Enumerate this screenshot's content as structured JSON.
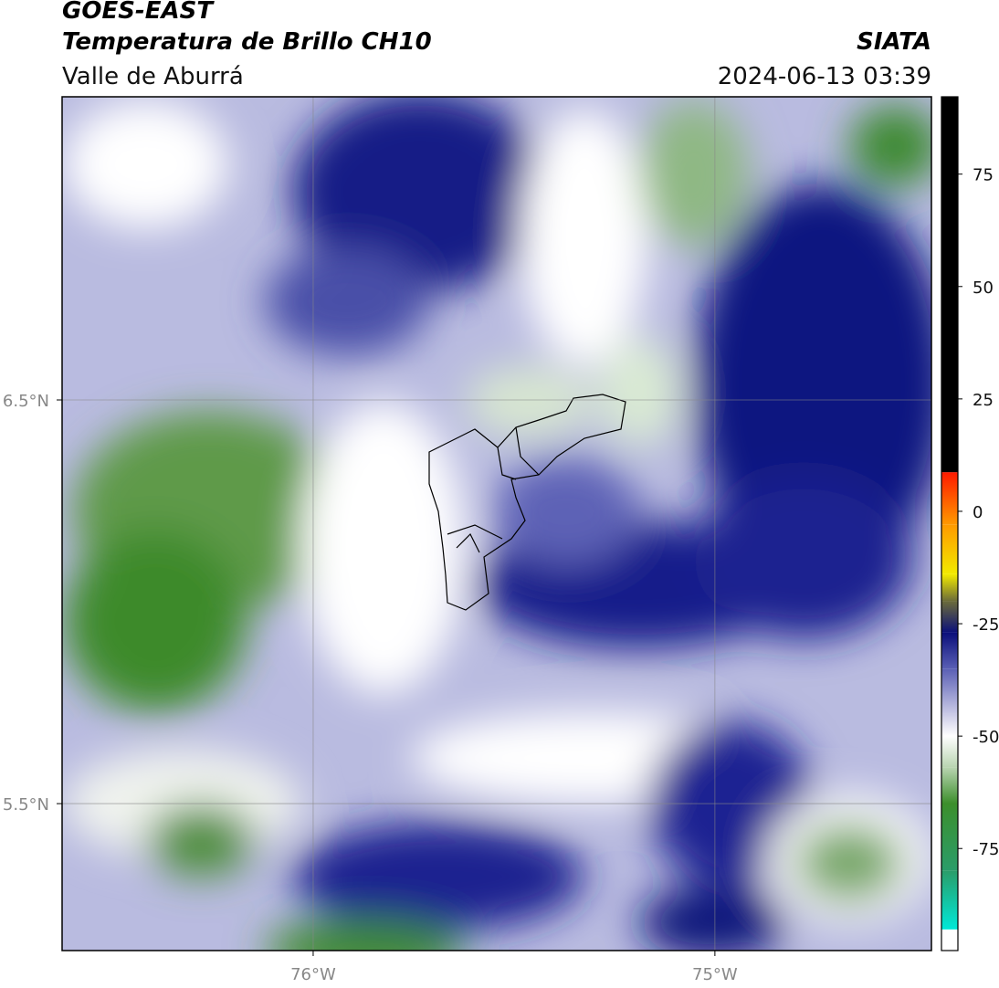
{
  "header": {
    "title": "GOES-EAST",
    "subtitle": "Temperatura de Brillo CH10",
    "region": "Valle de Aburrá",
    "source": "SIATA",
    "datetime": "2024-06-13 03:39"
  },
  "map": {
    "xlim": [
      -76.625,
      -74.461
    ],
    "ylim": [
      5.136,
      7.251
    ],
    "xticks": [
      {
        "value": -76,
        "label": "76°W"
      },
      {
        "value": -75,
        "label": "75°W"
      }
    ],
    "yticks": [
      {
        "value": 6.5,
        "label": "6.5°N"
      },
      {
        "value": 5.5,
        "label": "5.5°N"
      }
    ],
    "grid": true,
    "colorbar": {
      "lim": [
        -97.7,
        92.2
      ],
      "ticks": [
        75,
        50,
        25,
        0,
        -25,
        -50,
        -75
      ],
      "stops": [
        [
          -97.7,
          "#ffffff"
        ],
        [
          -93,
          "#ffffff"
        ],
        [
          -93,
          "#00e8d8"
        ],
        [
          -80,
          "#2a9d6a"
        ],
        [
          -65,
          "#3c8f2c"
        ],
        [
          -57,
          "#b8d4b0"
        ],
        [
          -50,
          "#ffffff"
        ],
        [
          -45,
          "#c9c9e6"
        ],
        [
          -35,
          "#5a5fb5"
        ],
        [
          -27,
          "#0b0f7a"
        ],
        [
          -20,
          "#6b6b3a"
        ],
        [
          -14,
          "#f2ea00"
        ],
        [
          -3,
          "#ff9a00"
        ],
        [
          8.7,
          "#ff1a00"
        ],
        [
          8.7,
          "#000000"
        ],
        [
          92.2,
          "#000000"
        ]
      ]
    }
  }
}
